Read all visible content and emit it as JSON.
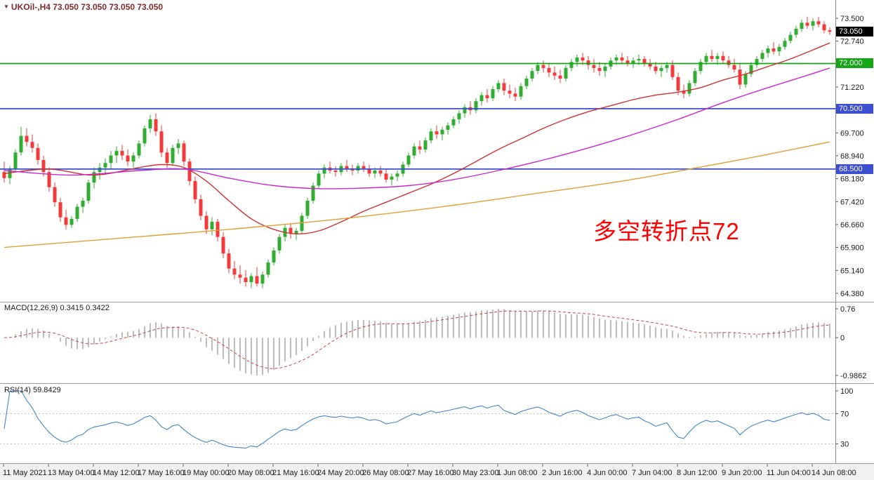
{
  "header": {
    "collapse_icon": "▼",
    "title": "UKOil-,H4 73.050 73.050 73.050 73.050",
    "color": "#7c2a2a"
  },
  "annotation": {
    "text": "多空转折点72",
    "color": "#ff0000"
  },
  "panels": {
    "macd": {
      "label": "MACD(12,26,9) 0.3415 0.3422"
    },
    "rsi": {
      "label": "RSI(14) 59.8429"
    }
  },
  "price_axis": {
    "badges": [
      {
        "text": "73.050",
        "price": 73.05,
        "bg": "#000000",
        "role": "current-price"
      },
      {
        "text": "72.000",
        "price": 72.0,
        "bg": "#16a516",
        "role": "resistance-line"
      },
      {
        "text": "70.500",
        "price": 70.5,
        "bg": "#3b4fd0",
        "role": "support-line"
      },
      {
        "text": "68.500",
        "price": 68.5,
        "bg": "#3b4fd0",
        "role": "support-line"
      }
    ]
  },
  "colors": {
    "candle_up": "#2fae2f",
    "candle_down": "#f23a3a",
    "macd_hist": "#bdbdbd",
    "macd_signal": "#cc4444",
    "rsi_line": "#4485c7",
    "axis_text": "#1a1a1a",
    "separator": "#9a9a9a",
    "time_strip_bg": "#f0f0f0",
    "line_green": "#16a516",
    "line_blue": "#3b4fd0"
  },
  "chart_data": {
    "type": "candlestick",
    "symbol": "UKOil-",
    "timeframe": "H4",
    "current_price": {
      "value": 73.05,
      "badge": "73.050"
    },
    "y_tick_labels": [
      "73.500",
      "72.740",
      "71.220",
      "69.700",
      "68.940",
      "68.180",
      "67.420",
      "66.660",
      "65.900",
      "65.140",
      "64.380"
    ],
    "y_range": [
      64.0,
      73.8
    ],
    "x_labels": [
      "11 May 2021",
      "13 May 04:00",
      "14 May 12:00",
      "17 May 16:00",
      "19 May 00:00",
      "20 May 08:00",
      "21 May 16:00",
      "24 May 20:00",
      "26 May 08:00",
      "27 May 16:00",
      "30 May 23:00",
      "1 Jun 08:00",
      "2 Jun 16:00",
      "4 Jun 00:00",
      "7 Jun 04:00",
      "8 Jun 12:00",
      "9 Jun 20:00",
      "11 Jun 04:00",
      "14 Jun 08:00"
    ],
    "hlines": [
      {
        "price": 72.0,
        "color": "#16a516",
        "badge": "72.000"
      },
      {
        "price": 70.5,
        "color": "#3b4fd0",
        "badge": "70.500"
      },
      {
        "price": 68.5,
        "color": "#3b4fd0",
        "badge": "68.500"
      }
    ],
    "moving_averages": [
      {
        "name": "ma-fast-red",
        "color": "#cc3333",
        "points": [
          [
            0,
            68.35
          ],
          [
            8,
            68.5
          ],
          [
            16,
            68.3
          ],
          [
            24,
            68.55
          ],
          [
            28,
            68.65
          ],
          [
            32,
            68.55
          ],
          [
            36,
            68.1
          ],
          [
            40,
            67.45
          ],
          [
            44,
            66.85
          ],
          [
            48,
            66.5
          ],
          [
            52,
            66.35
          ],
          [
            56,
            66.45
          ],
          [
            60,
            66.75
          ],
          [
            64,
            67.1
          ],
          [
            68,
            67.4
          ],
          [
            72,
            67.7
          ],
          [
            76,
            68.0
          ],
          [
            80,
            68.35
          ],
          [
            84,
            68.75
          ],
          [
            88,
            69.15
          ],
          [
            92,
            69.5
          ],
          [
            96,
            69.85
          ],
          [
            100,
            70.15
          ],
          [
            104,
            70.4
          ],
          [
            108,
            70.6
          ],
          [
            112,
            70.8
          ],
          [
            116,
            70.95
          ],
          [
            120,
            71.05
          ],
          [
            124,
            71.2
          ],
          [
            128,
            71.45
          ],
          [
            132,
            71.65
          ],
          [
            136,
            71.9
          ],
          [
            140,
            72.15
          ],
          [
            144,
            72.45
          ],
          [
            147,
            72.68
          ]
        ]
      },
      {
        "name": "ma-mid-magenta",
        "color": "#c929c9",
        "points": [
          [
            0,
            68.45
          ],
          [
            12,
            68.3
          ],
          [
            24,
            68.45
          ],
          [
            32,
            68.5
          ],
          [
            40,
            68.2
          ],
          [
            48,
            67.95
          ],
          [
            56,
            67.85
          ],
          [
            64,
            67.87
          ],
          [
            72,
            67.95
          ],
          [
            80,
            68.15
          ],
          [
            88,
            68.45
          ],
          [
            96,
            68.8
          ],
          [
            104,
            69.2
          ],
          [
            112,
            69.65
          ],
          [
            120,
            70.15
          ],
          [
            128,
            70.7
          ],
          [
            136,
            71.2
          ],
          [
            142,
            71.55
          ],
          [
            147,
            71.85
          ]
        ]
      },
      {
        "name": "ma-slow-orange",
        "color": "#dfa032",
        "points": [
          [
            0,
            65.9
          ],
          [
            20,
            66.2
          ],
          [
            40,
            66.5
          ],
          [
            60,
            66.85
          ],
          [
            80,
            67.3
          ],
          [
            95,
            67.7
          ],
          [
            110,
            68.1
          ],
          [
            125,
            68.6
          ],
          [
            135,
            68.95
          ],
          [
            147,
            69.4
          ]
        ]
      }
    ],
    "indicators": {
      "macd": {
        "label": "MACD(12,26,9)",
        "main": 0.3415,
        "signal": 0.3422,
        "axis_labels": [
          "0.76",
          "0",
          "-0.9862"
        ]
      },
      "rsi": {
        "label": "RSI(14)",
        "value": 59.8429,
        "axis_labels": [
          "100",
          "70",
          "30"
        ],
        "levels": [
          70,
          30
        ]
      }
    },
    "ohlc": [
      [
        68.4,
        68.75,
        68.05,
        68.2
      ],
      [
        68.2,
        68.6,
        68.0,
        68.5
      ],
      [
        68.5,
        69.15,
        68.4,
        69.05
      ],
      [
        69.05,
        69.9,
        68.95,
        69.6
      ],
      [
        69.6,
        69.85,
        69.25,
        69.4
      ],
      [
        69.4,
        69.65,
        69.05,
        69.2
      ],
      [
        69.2,
        69.35,
        68.65,
        68.8
      ],
      [
        68.8,
        68.95,
        68.25,
        68.4
      ],
      [
        68.4,
        68.55,
        67.75,
        67.9
      ],
      [
        67.9,
        68.05,
        67.25,
        67.4
      ],
      [
        67.4,
        67.55,
        66.75,
        66.9
      ],
      [
        66.9,
        67.15,
        66.5,
        66.65
      ],
      [
        66.65,
        66.95,
        66.55,
        66.85
      ],
      [
        66.85,
        67.35,
        66.75,
        67.25
      ],
      [
        67.25,
        67.55,
        67.05,
        67.45
      ],
      [
        67.45,
        68.15,
        67.35,
        68.05
      ],
      [
        68.05,
        68.55,
        67.85,
        68.4
      ],
      [
        68.4,
        68.7,
        68.15,
        68.55
      ],
      [
        68.55,
        68.85,
        68.35,
        68.7
      ],
      [
        68.7,
        69.1,
        68.5,
        68.95
      ],
      [
        68.95,
        69.25,
        68.7,
        69.1
      ],
      [
        69.1,
        69.3,
        68.8,
        68.95
      ],
      [
        68.95,
        69.15,
        68.6,
        68.75
      ],
      [
        68.75,
        69.05,
        68.55,
        68.95
      ],
      [
        68.95,
        69.45,
        68.85,
        69.35
      ],
      [
        69.35,
        69.95,
        69.25,
        69.85
      ],
      [
        69.85,
        70.3,
        69.7,
        70.15
      ],
      [
        70.15,
        70.35,
        69.6,
        69.75
      ],
      [
        69.75,
        69.95,
        68.9,
        69.05
      ],
      [
        69.05,
        69.2,
        68.55,
        68.7
      ],
      [
        68.7,
        69.3,
        68.6,
        69.2
      ],
      [
        69.2,
        69.5,
        69.0,
        69.35
      ],
      [
        69.35,
        69.45,
        68.6,
        68.75
      ],
      [
        68.75,
        68.85,
        67.95,
        68.1
      ],
      [
        68.1,
        68.25,
        67.35,
        67.5
      ],
      [
        67.5,
        67.65,
        66.8,
        66.95
      ],
      [
        66.95,
        67.1,
        66.35,
        66.5
      ],
      [
        66.5,
        66.9,
        66.3,
        66.75
      ],
      [
        66.75,
        66.85,
        66.1,
        66.25
      ],
      [
        66.25,
        66.4,
        65.55,
        65.7
      ],
      [
        65.7,
        65.85,
        65.05,
        65.2
      ],
      [
        65.2,
        65.45,
        64.85,
        65.0
      ],
      [
        65.0,
        65.3,
        64.7,
        64.9
      ],
      [
        64.9,
        65.15,
        64.6,
        64.75
      ],
      [
        64.75,
        65.05,
        64.55,
        64.95
      ],
      [
        64.95,
        65.25,
        64.6,
        64.7
      ],
      [
        64.7,
        65.1,
        64.55,
        65.0
      ],
      [
        65.0,
        65.5,
        64.9,
        65.4
      ],
      [
        65.4,
        65.9,
        65.3,
        65.8
      ],
      [
        65.8,
        66.35,
        65.7,
        66.25
      ],
      [
        66.25,
        66.65,
        66.1,
        66.55
      ],
      [
        66.55,
        66.7,
        66.2,
        66.35
      ],
      [
        66.35,
        66.55,
        66.15,
        66.45
      ],
      [
        66.45,
        67.05,
        66.35,
        66.95
      ],
      [
        66.95,
        67.55,
        66.85,
        67.45
      ],
      [
        67.45,
        68.05,
        67.35,
        67.95
      ],
      [
        67.95,
        68.45,
        67.85,
        68.35
      ],
      [
        68.35,
        68.65,
        68.2,
        68.55
      ],
      [
        68.55,
        68.75,
        68.35,
        68.45
      ],
      [
        68.45,
        68.6,
        68.25,
        68.4
      ],
      [
        68.4,
        68.7,
        68.3,
        68.6
      ],
      [
        68.6,
        68.8,
        68.4,
        68.5
      ],
      [
        68.5,
        68.65,
        68.3,
        68.45
      ],
      [
        68.45,
        68.7,
        68.35,
        68.6
      ],
      [
        68.6,
        68.75,
        68.4,
        68.5
      ],
      [
        68.5,
        68.65,
        68.25,
        68.35
      ],
      [
        68.35,
        68.55,
        68.2,
        68.45
      ],
      [
        68.45,
        68.6,
        68.25,
        68.35
      ],
      [
        68.35,
        68.5,
        68.05,
        68.15
      ],
      [
        68.15,
        68.35,
        67.95,
        68.25
      ],
      [
        68.25,
        68.45,
        68.1,
        68.35
      ],
      [
        68.35,
        68.75,
        68.25,
        68.65
      ],
      [
        68.65,
        69.05,
        68.55,
        68.95
      ],
      [
        68.95,
        69.35,
        68.85,
        69.25
      ],
      [
        69.25,
        69.45,
        69.0,
        69.15
      ],
      [
        69.15,
        69.55,
        69.05,
        69.45
      ],
      [
        69.45,
        69.85,
        69.35,
        69.75
      ],
      [
        69.75,
        69.95,
        69.5,
        69.65
      ],
      [
        69.65,
        69.9,
        69.45,
        69.8
      ],
      [
        69.8,
        70.05,
        69.65,
        69.95
      ],
      [
        69.95,
        70.25,
        69.85,
        70.15
      ],
      [
        70.15,
        70.45,
        70.0,
        70.35
      ],
      [
        70.35,
        70.65,
        70.2,
        70.55
      ],
      [
        70.55,
        70.75,
        70.3,
        70.45
      ],
      [
        70.45,
        70.85,
        70.35,
        70.75
      ],
      [
        70.75,
        71.05,
        70.6,
        70.95
      ],
      [
        70.95,
        71.15,
        70.7,
        70.85
      ],
      [
        70.85,
        71.25,
        70.75,
        71.15
      ],
      [
        71.15,
        71.45,
        71.05,
        71.35
      ],
      [
        71.35,
        71.5,
        70.95,
        71.1
      ],
      [
        71.1,
        71.3,
        70.85,
        71.0
      ],
      [
        71.0,
        71.2,
        70.75,
        70.9
      ],
      [
        70.9,
        71.35,
        70.8,
        71.25
      ],
      [
        71.25,
        71.6,
        71.15,
        71.5
      ],
      [
        71.5,
        71.85,
        71.4,
        71.75
      ],
      [
        71.75,
        72.05,
        71.65,
        71.95
      ],
      [
        71.95,
        72.1,
        71.7,
        71.85
      ],
      [
        71.85,
        72.0,
        71.55,
        71.7
      ],
      [
        71.7,
        71.9,
        71.45,
        71.6
      ],
      [
        71.6,
        71.8,
        71.35,
        71.5
      ],
      [
        71.5,
        71.95,
        71.4,
        71.85
      ],
      [
        71.85,
        72.15,
        71.75,
        72.05
      ],
      [
        72.05,
        72.3,
        71.9,
        72.2
      ],
      [
        72.2,
        72.35,
        71.95,
        72.1
      ],
      [
        72.1,
        72.25,
        71.8,
        71.95
      ],
      [
        71.95,
        72.15,
        71.7,
        71.85
      ],
      [
        71.85,
        72.05,
        71.6,
        71.75
      ],
      [
        71.75,
        72.0,
        71.55,
        71.9
      ],
      [
        71.9,
        72.2,
        71.8,
        72.1
      ],
      [
        72.1,
        72.3,
        71.95,
        72.2
      ],
      [
        72.2,
        72.35,
        72.0,
        72.1
      ],
      [
        72.1,
        72.25,
        71.9,
        72.0
      ],
      [
        72.0,
        72.2,
        71.85,
        72.1
      ],
      [
        72.1,
        72.3,
        71.95,
        72.15
      ],
      [
        72.15,
        72.25,
        71.9,
        72.0
      ],
      [
        72.0,
        72.15,
        71.8,
        71.9
      ],
      [
        71.9,
        72.05,
        71.65,
        71.75
      ],
      [
        71.75,
        71.95,
        71.55,
        71.85
      ],
      [
        71.85,
        72.05,
        71.7,
        71.95
      ],
      [
        71.95,
        72.1,
        71.45,
        71.55
      ],
      [
        71.55,
        71.7,
        70.95,
        71.1
      ],
      [
        71.1,
        71.3,
        70.85,
        71.0
      ],
      [
        71.0,
        71.45,
        70.9,
        71.35
      ],
      [
        71.35,
        71.85,
        71.25,
        71.75
      ],
      [
        71.75,
        72.15,
        71.65,
        72.05
      ],
      [
        72.05,
        72.35,
        71.95,
        72.25
      ],
      [
        72.25,
        72.45,
        72.05,
        72.15
      ],
      [
        72.15,
        72.35,
        71.95,
        72.25
      ],
      [
        72.25,
        72.4,
        72.0,
        72.1
      ],
      [
        72.1,
        72.25,
        71.85,
        71.95
      ],
      [
        71.95,
        72.15,
        71.7,
        71.8
      ],
      [
        71.8,
        72.0,
        71.15,
        71.3
      ],
      [
        71.3,
        71.75,
        71.2,
        71.65
      ],
      [
        71.65,
        72.05,
        71.55,
        71.95
      ],
      [
        71.95,
        72.25,
        71.85,
        72.15
      ],
      [
        72.15,
        72.45,
        72.05,
        72.35
      ],
      [
        72.35,
        72.6,
        72.2,
        72.5
      ],
      [
        72.5,
        72.7,
        72.3,
        72.4
      ],
      [
        72.4,
        72.65,
        72.25,
        72.55
      ],
      [
        72.55,
        72.85,
        72.45,
        72.75
      ],
      [
        72.75,
        73.05,
        72.65,
        72.95
      ],
      [
        72.95,
        73.25,
        72.85,
        73.15
      ],
      [
        73.15,
        73.45,
        73.05,
        73.35
      ],
      [
        73.35,
        73.55,
        73.15,
        73.25
      ],
      [
        73.25,
        73.5,
        73.1,
        73.4
      ],
      [
        73.4,
        73.55,
        73.2,
        73.3
      ],
      [
        73.3,
        73.4,
        73.0,
        73.1
      ],
      [
        73.1,
        73.2,
        72.95,
        73.05
      ]
    ]
  }
}
